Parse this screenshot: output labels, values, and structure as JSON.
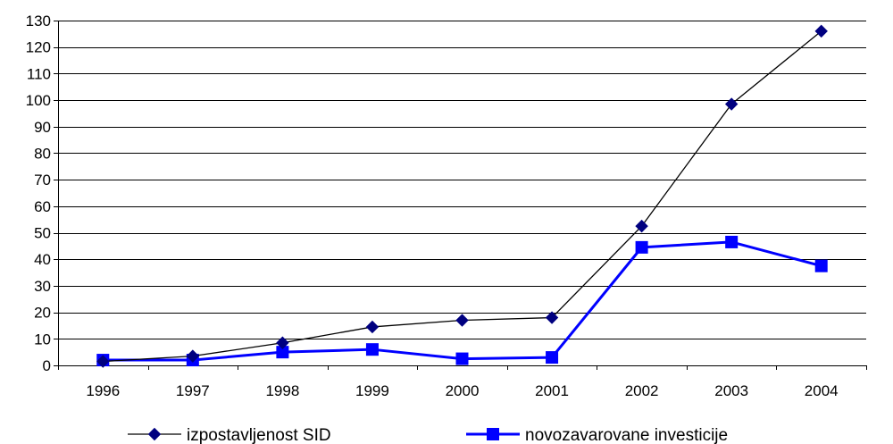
{
  "chart_data": {
    "type": "line",
    "x": [
      "1996",
      "1997",
      "1998",
      "1999",
      "2000",
      "2001",
      "2002",
      "2003",
      "2004"
    ],
    "ylim": [
      0,
      130
    ],
    "yticks": [
      0,
      10,
      20,
      30,
      40,
      50,
      60,
      70,
      80,
      90,
      100,
      110,
      120,
      130
    ],
    "grid": "horizontal",
    "legend_position": "bottom",
    "series": [
      {
        "name": "izpostavljenost SID",
        "color": "#000080",
        "line_color": "#000000",
        "marker": "diamond",
        "values": [
          1.5,
          3.5,
          8.5,
          14.5,
          17,
          18,
          52.5,
          98.5,
          126
        ]
      },
      {
        "name": "novozavarovane investicije",
        "color": "#0000ff",
        "line_color": "#0000ff",
        "marker": "square",
        "values": [
          2,
          2,
          5,
          6,
          2.5,
          3,
          44.5,
          46.5,
          37.5
        ]
      }
    ]
  }
}
